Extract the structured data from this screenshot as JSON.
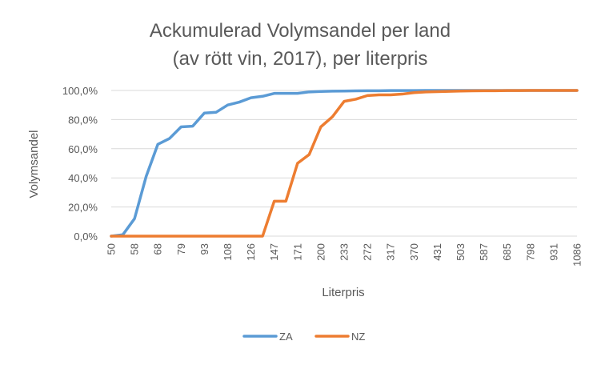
{
  "chart_data": {
    "type": "line",
    "title": [
      "Ackumulerad Volymsandel per land",
      "(av rött vin, 2017), per literpris"
    ],
    "xlabel": "Literpris",
    "ylabel": "Volymsandel",
    "x_tick_labels": [
      "50",
      "58",
      "68",
      "79",
      "93",
      "108",
      "126",
      "147",
      "171",
      "200",
      "233",
      "272",
      "317",
      "370",
      "431",
      "503",
      "587",
      "685",
      "798",
      "931",
      "1086"
    ],
    "ylim": [
      0,
      100
    ],
    "y_ticks": [
      0,
      20,
      40,
      60,
      80,
      100
    ],
    "y_tick_labels": [
      "0,0%",
      "20,0%",
      "40,0%",
      "60,0%",
      "80,0%",
      "100,0%"
    ],
    "grid": true,
    "legend_position": "bottom",
    "series": [
      {
        "name": "ZA",
        "color": "#5B9BD5",
        "values": [
          0,
          1,
          12,
          41,
          63,
          67,
          75,
          75.5,
          84.5,
          85,
          90,
          92,
          95,
          96,
          98,
          98,
          98,
          99,
          99.3,
          99.5,
          99.6,
          99.7,
          99.8,
          99.8,
          99.9,
          99.9,
          99.9,
          100,
          100,
          100,
          100,
          100,
          100,
          100,
          100,
          100,
          100,
          100,
          100,
          100,
          100
        ]
      },
      {
        "name": "NZ",
        "color": "#ED7D31",
        "values": [
          0,
          0,
          0,
          0,
          0,
          0,
          0,
          0,
          0,
          0,
          0,
          0,
          0,
          0,
          24,
          24,
          50,
          56,
          75,
          82,
          92.5,
          94,
          96.5,
          97,
          97,
          97.5,
          98.5,
          99,
          99.2,
          99.4,
          99.6,
          99.7,
          99.8,
          99.8,
          99.9,
          99.9,
          100,
          100,
          100,
          100,
          100
        ]
      }
    ]
  }
}
